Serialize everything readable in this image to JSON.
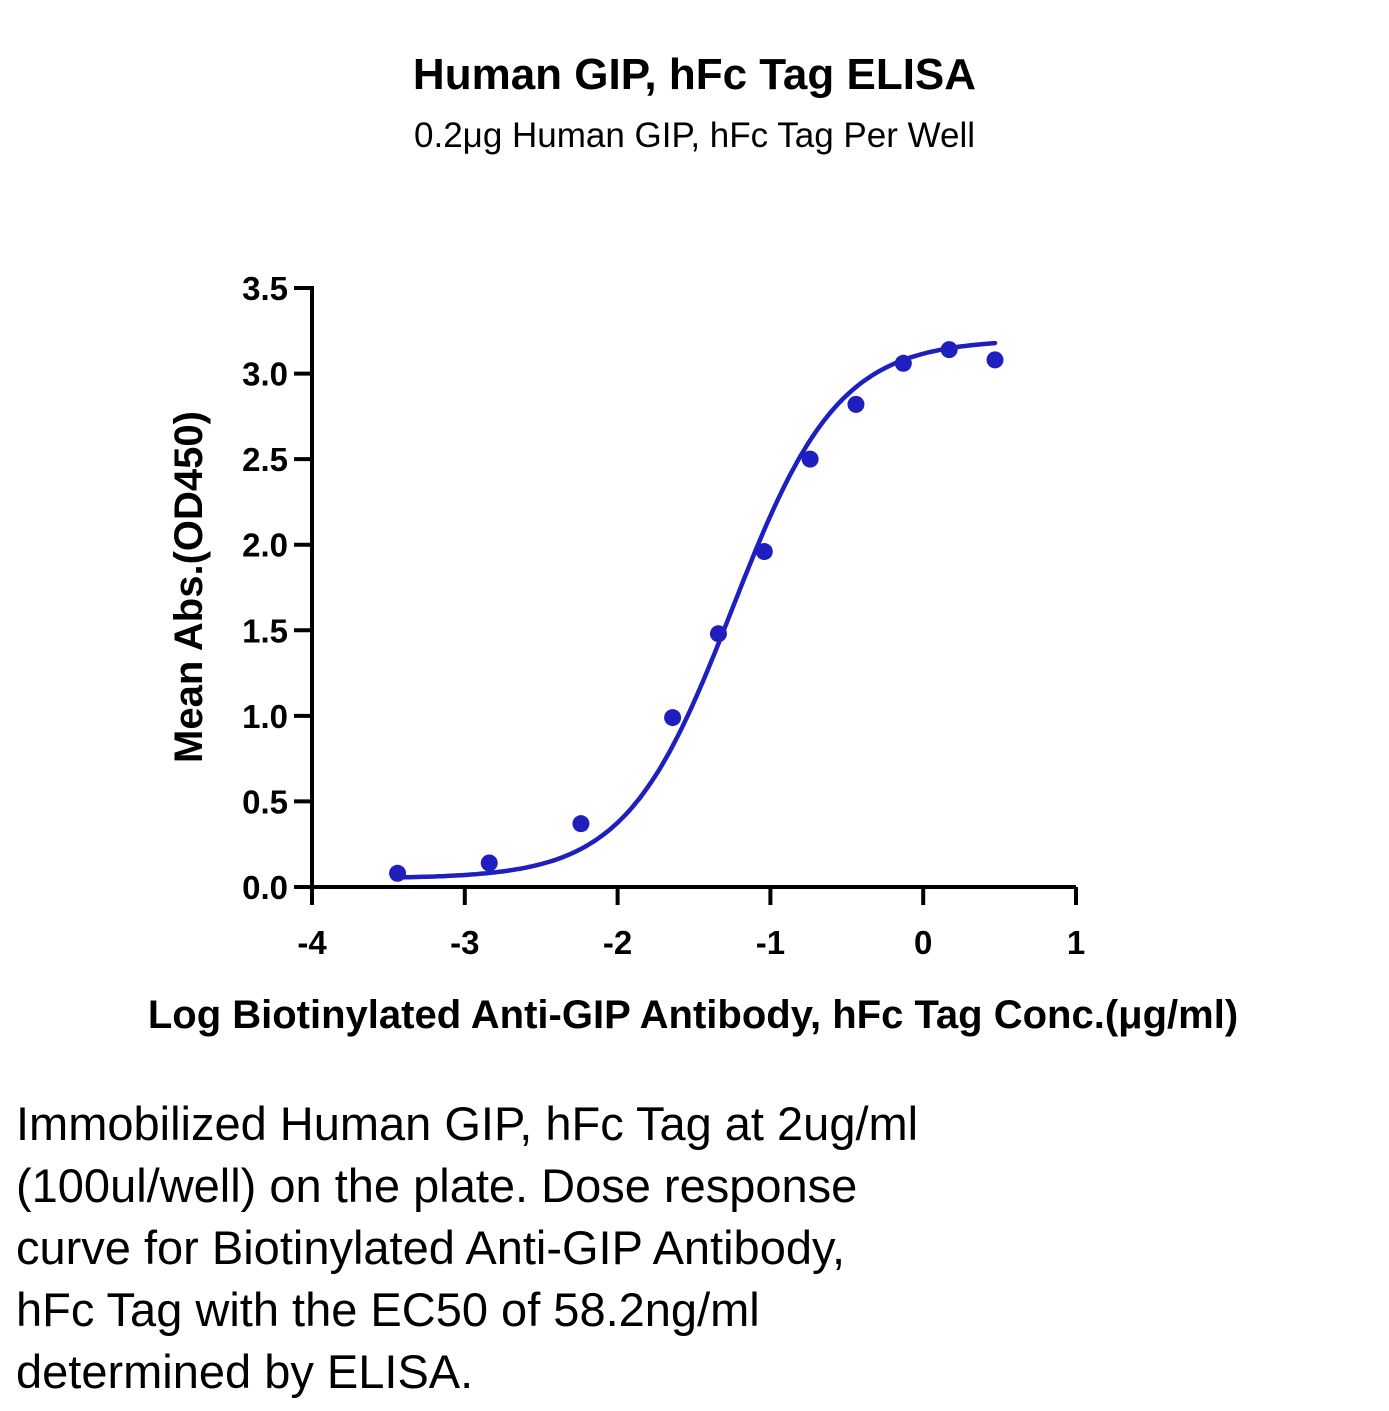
{
  "chart_data": {
    "type": "scatter",
    "title": "Human GIP, hFc Tag ELISA",
    "subtitle": "0.2μg Human GIP, hFc Tag Per Well",
    "xlabel": "Log Biotinylated Anti-GIP Antibody, hFc Tag Conc.(μg/ml)",
    "ylabel": "Mean Abs.(OD450)",
    "xlim": [
      -4,
      1
    ],
    "ylim": [
      0,
      3.5
    ],
    "xticks": [
      "-4",
      "-3",
      "-2",
      "-1",
      "0",
      "1"
    ],
    "yticks": [
      "0.0",
      "0.5",
      "1.0",
      "1.5",
      "2.0",
      "2.5",
      "3.0",
      "3.5"
    ],
    "grid": false,
    "series": [
      {
        "points": [
          {
            "x": -3.44,
            "y": 0.08
          },
          {
            "x": -2.84,
            "y": 0.14
          },
          {
            "x": -2.24,
            "y": 0.37
          },
          {
            "x": -1.64,
            "y": 0.99
          },
          {
            "x": -1.34,
            "y": 1.48
          },
          {
            "x": -1.04,
            "y": 1.96
          },
          {
            "x": -0.74,
            "y": 2.5
          },
          {
            "x": -0.44,
            "y": 2.82
          },
          {
            "x": -0.13,
            "y": 3.06
          },
          {
            "x": 0.17,
            "y": 3.14
          },
          {
            "x": 0.47,
            "y": 3.08
          }
        ],
        "fit": "4PL",
        "color": "#1f1fbf"
      }
    ]
  },
  "caption": [
    "Immobilized Human GIP, hFc Tag at 2ug/ml",
    "(100ul/well) on the plate. Dose response",
    "curve for Biotinylated Anti-GIP Antibody,",
    "hFc Tag with the EC50 of 58.2ng/ml",
    "determined by ELISA."
  ]
}
